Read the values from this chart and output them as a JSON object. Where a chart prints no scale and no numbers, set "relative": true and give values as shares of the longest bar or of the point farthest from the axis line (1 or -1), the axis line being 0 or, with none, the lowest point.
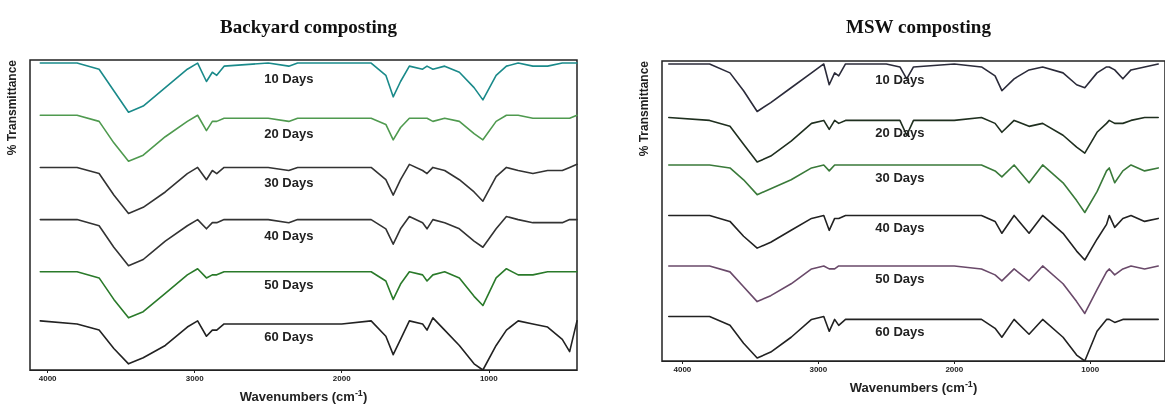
{
  "chart_data": [
    {
      "type": "line",
      "title": "Backyard composting",
      "xlabel": "Wavenumbers (cm$^{-1}$)",
      "ylabel": "% Transmittance",
      "relative": true,
      "xlim": [
        4120,
        400
      ],
      "xticks": [
        4000,
        3000,
        2000,
        1000
      ],
      "x": [
        4050,
        3800,
        3650,
        3550,
        3450,
        3350,
        3200,
        3050,
        2980,
        2920,
        2880,
        2850,
        2800,
        2500,
        2360,
        2300,
        2000,
        1800,
        1700,
        1650,
        1600,
        1540,
        1450,
        1420,
        1380,
        1300,
        1200,
        1100,
        1040,
        950,
        880,
        800,
        700,
        600,
        500,
        450,
        400
      ],
      "series": [
        {
          "name": "10 Days",
          "color": "#1a8a8a",
          "values": [
            1.0,
            1.0,
            0.98,
            0.91,
            0.84,
            0.86,
            0.92,
            0.98,
            1.0,
            0.94,
            0.97,
            0.96,
            0.99,
            1.0,
            0.99,
            1.0,
            1.0,
            1.0,
            0.96,
            0.89,
            0.94,
            0.99,
            0.98,
            0.99,
            0.98,
            0.99,
            0.97,
            0.92,
            0.88,
            0.96,
            0.99,
            1.0,
            0.99,
            0.99,
            1.0,
            1.0,
            1.0
          ]
        },
        {
          "name": "20 Days",
          "color": "#4f9a4f",
          "values": [
            0.83,
            0.83,
            0.81,
            0.74,
            0.68,
            0.7,
            0.76,
            0.81,
            0.83,
            0.78,
            0.81,
            0.81,
            0.82,
            0.82,
            0.81,
            0.82,
            0.82,
            0.82,
            0.8,
            0.75,
            0.79,
            0.82,
            0.82,
            0.82,
            0.81,
            0.82,
            0.81,
            0.77,
            0.75,
            0.81,
            0.83,
            0.83,
            0.82,
            0.82,
            0.82,
            0.82,
            0.83
          ]
        },
        {
          "name": "30 Days",
          "color": "#333333",
          "values": [
            0.66,
            0.66,
            0.64,
            0.57,
            0.51,
            0.53,
            0.58,
            0.64,
            0.66,
            0.62,
            0.65,
            0.64,
            0.66,
            0.66,
            0.65,
            0.66,
            0.66,
            0.66,
            0.62,
            0.57,
            0.62,
            0.67,
            0.65,
            0.64,
            0.66,
            0.65,
            0.62,
            0.58,
            0.55,
            0.63,
            0.66,
            0.65,
            0.64,
            0.65,
            0.65,
            0.66,
            0.67
          ]
        },
        {
          "name": "40 Days",
          "color": "#333333",
          "values": [
            0.49,
            0.49,
            0.47,
            0.4,
            0.34,
            0.36,
            0.42,
            0.47,
            0.49,
            0.46,
            0.48,
            0.48,
            0.49,
            0.49,
            0.48,
            0.49,
            0.49,
            0.49,
            0.46,
            0.41,
            0.46,
            0.5,
            0.48,
            0.46,
            0.49,
            0.48,
            0.46,
            0.42,
            0.4,
            0.46,
            0.5,
            0.49,
            0.48,
            0.48,
            0.48,
            0.49,
            0.49
          ]
        },
        {
          "name": "50 Days",
          "color": "#2a7a2a",
          "values": [
            0.32,
            0.32,
            0.3,
            0.23,
            0.17,
            0.19,
            0.25,
            0.31,
            0.33,
            0.3,
            0.31,
            0.31,
            0.32,
            0.32,
            0.32,
            0.32,
            0.32,
            0.32,
            0.29,
            0.23,
            0.28,
            0.32,
            0.31,
            0.29,
            0.31,
            0.32,
            0.3,
            0.24,
            0.21,
            0.3,
            0.33,
            0.31,
            0.31,
            0.32,
            0.32,
            0.32,
            0.32
          ]
        },
        {
          "name": "60 Days",
          "color": "#222222",
          "values": [
            0.16,
            0.15,
            0.13,
            0.07,
            0.02,
            0.04,
            0.08,
            0.14,
            0.16,
            0.11,
            0.13,
            0.13,
            0.15,
            0.15,
            0.15,
            0.15,
            0.15,
            0.16,
            0.11,
            0.05,
            0.1,
            0.16,
            0.15,
            0.13,
            0.17,
            0.13,
            0.08,
            0.02,
            0.0,
            0.08,
            0.13,
            0.16,
            0.15,
            0.14,
            0.1,
            0.06,
            0.16
          ]
        }
      ]
    },
    {
      "type": "line",
      "title": "MSW composting",
      "xlabel": "Wavenumbers (cm$^{-1}$)",
      "ylabel": "% Transmittance",
      "relative": true,
      "xlim": [
        4150,
        450
      ],
      "xticks": [
        4000,
        3000,
        2000,
        1000
      ],
      "x": [
        4100,
        3800,
        3650,
        3550,
        3450,
        3350,
        3200,
        3050,
        2960,
        2920,
        2880,
        2850,
        2800,
        2500,
        2400,
        2350,
        2300,
        2000,
        1800,
        1700,
        1650,
        1560,
        1450,
        1350,
        1200,
        1100,
        1040,
        950,
        880,
        860,
        820,
        760,
        700,
        600,
        500
      ],
      "series": [
        {
          "name": "10 Days",
          "color": "#2b2b3a",
          "values": [
            1.0,
            1.0,
            0.97,
            0.91,
            0.84,
            0.87,
            0.92,
            0.97,
            1.0,
            0.93,
            0.97,
            0.96,
            1.0,
            1.0,
            0.99,
            0.95,
            0.99,
            1.0,
            0.99,
            0.96,
            0.91,
            0.95,
            0.98,
            0.99,
            0.97,
            0.93,
            0.92,
            0.97,
            0.99,
            0.99,
            0.98,
            0.95,
            0.98,
            0.99,
            1.0
          ]
        },
        {
          "name": "20 Days",
          "color": "#1f2f1f",
          "values": [
            0.82,
            0.81,
            0.79,
            0.73,
            0.67,
            0.69,
            0.74,
            0.8,
            0.81,
            0.78,
            0.81,
            0.8,
            0.81,
            0.81,
            0.81,
            0.76,
            0.81,
            0.81,
            0.82,
            0.8,
            0.77,
            0.81,
            0.79,
            0.8,
            0.76,
            0.72,
            0.7,
            0.77,
            0.8,
            0.81,
            0.8,
            0.8,
            0.81,
            0.82,
            0.82
          ]
        },
        {
          "name": "30 Days",
          "color": "#3a7a3a",
          "values": [
            0.66,
            0.66,
            0.65,
            0.61,
            0.56,
            0.58,
            0.61,
            0.65,
            0.66,
            0.64,
            0.66,
            0.66,
            0.66,
            0.66,
            0.66,
            0.66,
            0.66,
            0.66,
            0.66,
            0.64,
            0.62,
            0.66,
            0.6,
            0.66,
            0.6,
            0.54,
            0.5,
            0.57,
            0.64,
            0.65,
            0.6,
            0.64,
            0.66,
            0.64,
            0.65
          ]
        },
        {
          "name": "40 Days",
          "color": "#222222",
          "values": [
            0.49,
            0.49,
            0.47,
            0.42,
            0.38,
            0.4,
            0.44,
            0.48,
            0.49,
            0.44,
            0.48,
            0.48,
            0.49,
            0.49,
            0.49,
            0.49,
            0.49,
            0.49,
            0.49,
            0.47,
            0.43,
            0.49,
            0.43,
            0.49,
            0.43,
            0.37,
            0.34,
            0.41,
            0.46,
            0.49,
            0.45,
            0.48,
            0.49,
            0.47,
            0.48
          ]
        },
        {
          "name": "50 Days",
          "color": "#6a4a6a",
          "values": [
            0.32,
            0.32,
            0.3,
            0.25,
            0.2,
            0.22,
            0.26,
            0.31,
            0.32,
            0.31,
            0.31,
            0.32,
            0.32,
            0.32,
            0.32,
            0.32,
            0.32,
            0.32,
            0.31,
            0.29,
            0.27,
            0.31,
            0.27,
            0.32,
            0.26,
            0.2,
            0.16,
            0.24,
            0.3,
            0.31,
            0.29,
            0.31,
            0.32,
            0.31,
            0.32
          ]
        },
        {
          "name": "60 Days",
          "color": "#222222",
          "values": [
            0.15,
            0.15,
            0.12,
            0.06,
            0.01,
            0.03,
            0.08,
            0.14,
            0.15,
            0.1,
            0.14,
            0.12,
            0.14,
            0.14,
            0.14,
            0.14,
            0.14,
            0.14,
            0.14,
            0.11,
            0.08,
            0.14,
            0.09,
            0.14,
            0.08,
            0.02,
            0.0,
            0.1,
            0.14,
            0.14,
            0.13,
            0.14,
            0.14,
            0.14,
            0.14
          ]
        }
      ]
    }
  ]
}
